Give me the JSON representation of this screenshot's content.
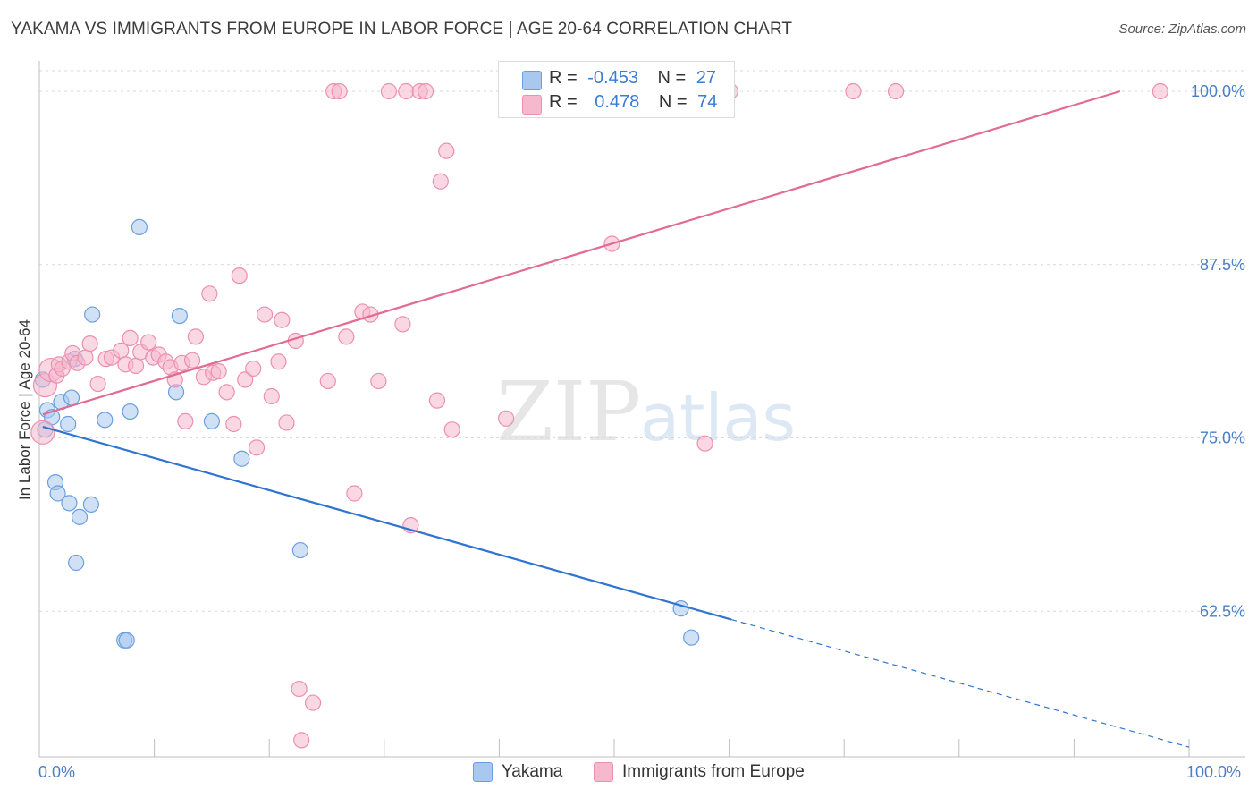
{
  "title": "YAKAMA VS IMMIGRANTS FROM EUROPE IN LABOR FORCE | AGE 20-64 CORRELATION CHART",
  "source": "Source: ZipAtlas.com",
  "watermark": {
    "zip": "ZIP",
    "atlas": "atlas"
  },
  "colors": {
    "blue": "#a9c8ef",
    "blue_edge": "#6a9fdf",
    "blue_line": "#2f74d0",
    "pink": "#f6b8cc",
    "pink_edge": "#ec8fae",
    "pink_line": "#e26a93",
    "axis_text": "#4a7fc8",
    "grid": "#d9d9d9"
  },
  "stats": [
    {
      "r_label": "R =",
      "r_value": "-0.453",
      "n_label": "N =",
      "n_value": "27",
      "series": "blue"
    },
    {
      "r_label": "R =",
      "r_value": "0.478",
      "n_label": "N =",
      "n_value": "74",
      "series": "pink"
    }
  ],
  "chart_data": {
    "type": "scatter",
    "xlabel": "",
    "ylabel": "In Labor Force | Age 20-64",
    "xlim": [
      0,
      100
    ],
    "ylim": [
      52,
      102
    ],
    "x_tick_labels": [
      "0.0%",
      "100.0%"
    ],
    "y_ticks": [
      62.5,
      75.0,
      87.5,
      100.0
    ],
    "y_tick_labels": [
      "62.5%",
      "75.0%",
      "87.5%",
      "100.0%"
    ],
    "legend": [
      "Yakama",
      "Immigrants from Europe"
    ],
    "series": [
      {
        "name": "Yakama",
        "color": "blue",
        "points": [
          [
            0.3,
            79.2
          ],
          [
            0.5,
            75.6
          ],
          [
            0.7,
            77.0
          ],
          [
            1.1,
            76.5
          ],
          [
            1.4,
            71.8
          ],
          [
            1.6,
            71.0
          ],
          [
            1.9,
            77.6
          ],
          [
            2.5,
            76.0
          ],
          [
            2.6,
            70.3
          ],
          [
            2.8,
            77.9
          ],
          [
            3.1,
            80.7
          ],
          [
            3.2,
            66.0
          ],
          [
            3.5,
            69.3
          ],
          [
            4.5,
            70.2
          ],
          [
            4.6,
            83.9
          ],
          [
            5.7,
            76.3
          ],
          [
            7.4,
            60.4
          ],
          [
            7.6,
            60.4
          ],
          [
            7.9,
            76.9
          ],
          [
            8.7,
            90.2
          ],
          [
            11.9,
            78.3
          ],
          [
            12.2,
            83.8
          ],
          [
            15.0,
            76.2
          ],
          [
            17.6,
            73.5
          ],
          [
            22.7,
            66.9
          ],
          [
            55.8,
            62.7
          ],
          [
            56.7,
            60.6
          ]
        ],
        "trend": {
          "x0": 0.3,
          "y0": 75.8,
          "x1": 60.2,
          "y1": 61.9,
          "dash_to_x": 100,
          "dash_to_y": 52.7
        }
      },
      {
        "name": "Immigrants from Europe",
        "color": "pink",
        "points": [
          [
            0.3,
            75.4
          ],
          [
            0.5,
            78.8
          ],
          [
            1.0,
            79.9
          ],
          [
            1.5,
            79.5
          ],
          [
            1.7,
            80.3
          ],
          [
            2.0,
            80.0
          ],
          [
            2.6,
            80.5
          ],
          [
            2.9,
            81.1
          ],
          [
            3.3,
            80.4
          ],
          [
            4.0,
            80.8
          ],
          [
            4.4,
            81.8
          ],
          [
            5.1,
            78.9
          ],
          [
            5.8,
            80.7
          ],
          [
            6.3,
            80.8
          ],
          [
            7.1,
            81.3
          ],
          [
            7.5,
            80.3
          ],
          [
            7.9,
            82.2
          ],
          [
            8.4,
            80.2
          ],
          [
            8.8,
            81.2
          ],
          [
            9.5,
            81.9
          ],
          [
            9.9,
            80.8
          ],
          [
            10.4,
            81.0
          ],
          [
            11.0,
            80.5
          ],
          [
            11.4,
            80.1
          ],
          [
            11.8,
            79.2
          ],
          [
            12.4,
            80.4
          ],
          [
            12.7,
            76.2
          ],
          [
            13.3,
            80.6
          ],
          [
            13.6,
            82.3
          ],
          [
            14.3,
            79.4
          ],
          [
            14.8,
            85.4
          ],
          [
            15.1,
            79.7
          ],
          [
            15.6,
            79.8
          ],
          [
            16.3,
            78.3
          ],
          [
            16.9,
            76.0
          ],
          [
            17.4,
            86.7
          ],
          [
            17.9,
            79.2
          ],
          [
            18.6,
            80.0
          ],
          [
            18.9,
            74.3
          ],
          [
            19.6,
            83.9
          ],
          [
            20.2,
            78.0
          ],
          [
            20.8,
            80.5
          ],
          [
            21.1,
            83.5
          ],
          [
            21.5,
            76.1
          ],
          [
            22.3,
            82.0
          ],
          [
            22.6,
            56.9
          ],
          [
            22.8,
            53.2
          ],
          [
            23.8,
            55.9
          ],
          [
            25.1,
            79.1
          ],
          [
            25.6,
            100.0
          ],
          [
            26.1,
            100.0
          ],
          [
            26.7,
            82.3
          ],
          [
            27.4,
            71.0
          ],
          [
            28.1,
            84.1
          ],
          [
            28.8,
            83.9
          ],
          [
            29.5,
            79.1
          ],
          [
            30.4,
            100.0
          ],
          [
            31.6,
            83.2
          ],
          [
            31.9,
            100.0
          ],
          [
            32.3,
            68.7
          ],
          [
            33.1,
            100.0
          ],
          [
            33.6,
            100.0
          ],
          [
            34.6,
            77.7
          ],
          [
            34.9,
            93.5
          ],
          [
            35.4,
            95.7
          ],
          [
            35.9,
            75.6
          ],
          [
            40.6,
            76.4
          ],
          [
            49.8,
            89.0
          ],
          [
            57.9,
            74.6
          ],
          [
            59.7,
            100.0
          ],
          [
            60.1,
            100.0
          ],
          [
            70.8,
            100.0
          ],
          [
            74.5,
            100.0
          ],
          [
            97.5,
            100.0
          ]
        ],
        "trend": {
          "x0": 0.3,
          "y0": 76.7,
          "x1": 94.0,
          "y1": 100.0
        }
      }
    ]
  }
}
